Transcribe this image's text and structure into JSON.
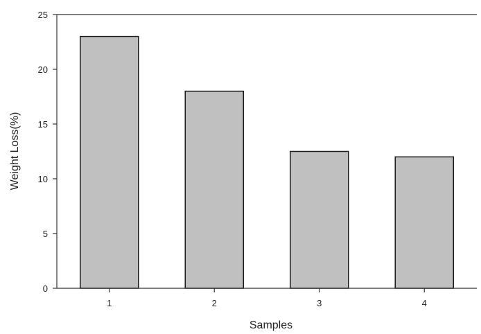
{
  "chart_data": {
    "type": "bar",
    "categories": [
      "1",
      "2",
      "3",
      "4"
    ],
    "values": [
      23,
      18,
      12.5,
      12
    ],
    "title": "",
    "xlabel": "Samples",
    "ylabel": "Weight Loss(%)",
    "ylim": [
      0,
      25
    ],
    "yticks": [
      "0",
      "5",
      "10",
      "15",
      "20",
      "25"
    ],
    "grid": false,
    "legend": "none",
    "colors": {
      "bar_fill": "#c0c0c0",
      "bar_stroke": "#1a1a1a",
      "axis": "#333333"
    }
  }
}
